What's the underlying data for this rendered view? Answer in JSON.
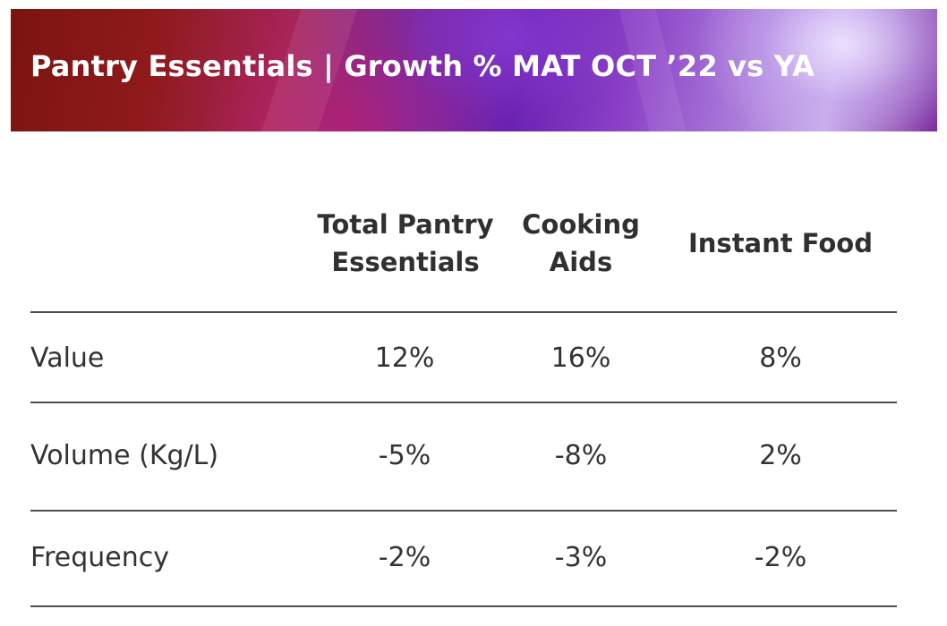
{
  "chart_data": {
    "type": "table",
    "title": "Pantry Essentials | Growth % MAT OCT ’22 vs YA",
    "columns": [
      "Total Pantry Essentials",
      "Cooking Aids",
      "Instant Food"
    ],
    "column_header_lines": [
      [
        "Total Pantry",
        "Essentials"
      ],
      [
        "Cooking",
        "Aids"
      ],
      [
        "Instant Food"
      ]
    ],
    "rows": [
      {
        "label": "Value",
        "values": [
          12,
          16,
          8
        ],
        "display": [
          "12%",
          "16%",
          "8%"
        ]
      },
      {
        "label": "Volume (Kg/L)",
        "values": [
          -5,
          -8,
          2
        ],
        "display": [
          "-5%",
          "-8%",
          "2%"
        ]
      },
      {
        "label": "Frequency",
        "values": [
          -2,
          -3,
          -2
        ],
        "display": [
          "-2%",
          "-3%",
          "-2%"
        ]
      }
    ],
    "unit": "%"
  },
  "colors": {
    "title_text": "#ffffff",
    "body_text": "#333333",
    "rule": "#4d4d4d",
    "banner_red": "#8f1a1c",
    "banner_purple": "#6a22b0",
    "banner_lilac": "#c9b0ea"
  }
}
